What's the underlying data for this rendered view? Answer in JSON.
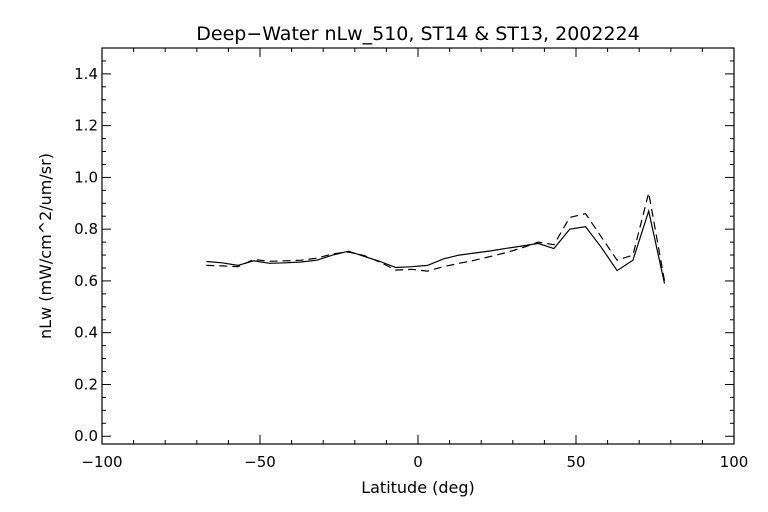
{
  "chart_data": {
    "type": "line",
    "title": "Deep−Water nLw_510, ST14 & ST13, 2002224",
    "xlabel": "Latitude (deg)",
    "ylabel": "nLw (mW/cm^2/um/sr)",
    "xlim": [
      -100,
      100
    ],
    "ylim": [
      -0.03,
      1.5
    ],
    "xticks": [
      -100,
      -50,
      0,
      50,
      100
    ],
    "xtick_labels": [
      "−100",
      "−50",
      "0",
      "50",
      "100"
    ],
    "yticks": [
      0.0,
      0.2,
      0.4,
      0.6,
      0.8,
      1.0,
      1.2,
      1.4
    ],
    "ytick_labels": [
      "0.0",
      "0.2",
      "0.4",
      "0.6",
      "0.8",
      "1.0",
      "1.2",
      "1.4"
    ],
    "grid": false,
    "legend": "none",
    "series": [
      {
        "style": "solid",
        "color": "#000000",
        "points": [
          [
            -67,
            0.675
          ],
          [
            -62,
            0.67
          ],
          [
            -57,
            0.66
          ],
          [
            -52,
            0.678
          ],
          [
            -47,
            0.668
          ],
          [
            -42,
            0.67
          ],
          [
            -37,
            0.673
          ],
          [
            -32,
            0.68
          ],
          [
            -27,
            0.7
          ],
          [
            -22,
            0.715
          ],
          [
            -17,
            0.695
          ],
          [
            -12,
            0.675
          ],
          [
            -7,
            0.652
          ],
          [
            -2,
            0.655
          ],
          [
            3,
            0.66
          ],
          [
            8,
            0.685
          ],
          [
            13,
            0.7
          ],
          [
            18,
            0.708
          ],
          [
            23,
            0.716
          ],
          [
            28,
            0.726
          ],
          [
            33,
            0.735
          ],
          [
            38,
            0.745
          ],
          [
            43,
            0.725
          ],
          [
            48,
            0.8
          ],
          [
            53,
            0.81
          ],
          [
            58,
            0.73
          ],
          [
            63,
            0.64
          ],
          [
            68,
            0.68
          ],
          [
            73,
            0.87
          ],
          [
            78,
            0.59
          ]
        ]
      },
      {
        "style": "dashed",
        "color": "#000000",
        "points": [
          [
            -67,
            0.66
          ],
          [
            -62,
            0.658
          ],
          [
            -57,
            0.655
          ],
          [
            -52,
            0.683
          ],
          [
            -47,
            0.676
          ],
          [
            -42,
            0.678
          ],
          [
            -37,
            0.68
          ],
          [
            -32,
            0.688
          ],
          [
            -27,
            0.705
          ],
          [
            -22,
            0.712
          ],
          [
            -17,
            0.698
          ],
          [
            -12,
            0.672
          ],
          [
            -7,
            0.642
          ],
          [
            -2,
            0.645
          ],
          [
            3,
            0.638
          ],
          [
            8,
            0.655
          ],
          [
            13,
            0.668
          ],
          [
            18,
            0.68
          ],
          [
            23,
            0.695
          ],
          [
            28,
            0.71
          ],
          [
            33,
            0.728
          ],
          [
            38,
            0.75
          ],
          [
            43,
            0.74
          ],
          [
            48,
            0.845
          ],
          [
            53,
            0.86
          ],
          [
            58,
            0.77
          ],
          [
            63,
            0.68
          ],
          [
            68,
            0.7
          ],
          [
            73,
            0.94
          ],
          [
            78,
            0.6
          ]
        ]
      }
    ]
  }
}
